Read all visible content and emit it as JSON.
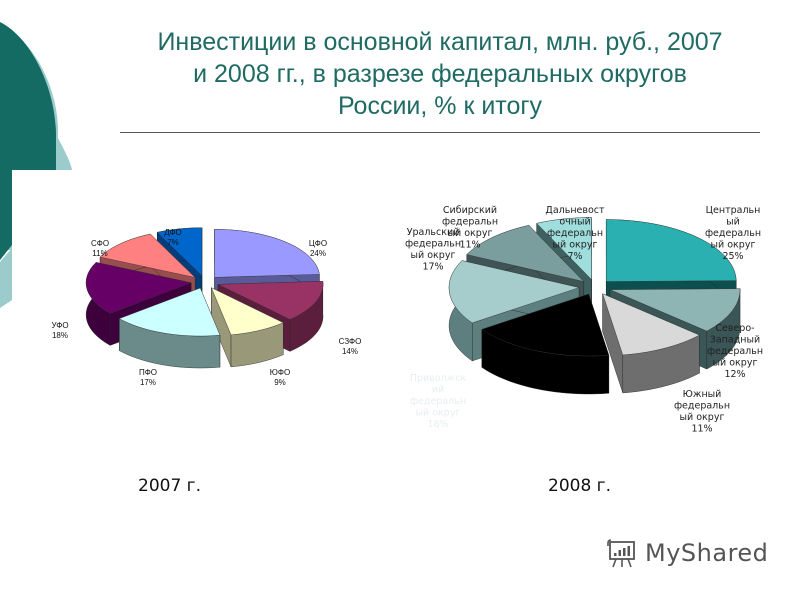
{
  "slide": {
    "title": "Инвестиции в основной капитал, млн. руб., 2007 и 2008 гг., в разрезе федеральных округов России, % к итогу",
    "title_lines": [
      "Инвестиции в основной капитал, млн. руб., 2007",
      "и 2008 гг., в разрезе федеральных округов",
      "России, % к итогу"
    ],
    "year_labels": [
      "2007 г.",
      "2008 г."
    ],
    "title_color": "#1f6b63",
    "watermark": "MyShared"
  },
  "chart_data": [
    {
      "type": "pie",
      "title": "2007 г.",
      "style": "3d-exploded",
      "categories": [
        "ЦФО",
        "СЗФО",
        "ЮФО",
        "ПФО",
        "УФО",
        "СФО",
        "ДФО"
      ],
      "values": [
        24,
        14,
        9,
        17,
        18,
        11,
        7
      ],
      "labels": [
        "ЦФО 24%",
        "СЗФО 14%",
        "ЮФО 9%",
        "ПФО 17%",
        "УФО 18%",
        "СФО 11%",
        "ДФО 7%"
      ],
      "colors": [
        "#9999ff",
        "#993366",
        "#ffffcc",
        "#ccffff",
        "#660066",
        "#ff8080",
        "#0066cc"
      ],
      "side_colors": [
        "#5a5a99",
        "#5c1e3d",
        "#99997a",
        "#6b8a8a",
        "#3d003d",
        "#994d4d",
        "#003d7a"
      ],
      "unit": "%"
    },
    {
      "type": "pie",
      "title": "2008 г.",
      "style": "3d-exploded",
      "categories": [
        "Центральный федеральный округ",
        "Северо-Западный федеральный округ",
        "Южный федеральный округ",
        "Приволжский федеральный округ",
        "Уральский федеральный округ",
        "Сибирский федеральный округ",
        "Дальневосточный федеральный округ"
      ],
      "values": [
        25,
        12,
        11,
        18,
        17,
        11,
        7
      ],
      "labels": [
        [
          "Центральн",
          "ый",
          "федеральн",
          "ый округ",
          "25%"
        ],
        [
          "Северо-",
          "Западный",
          "федеральн",
          "ый округ",
          "12%"
        ],
        [
          "Южный",
          "федеральн",
          "ый округ",
          "11%"
        ],
        [
          "Приволжск",
          "ий",
          "федеральн",
          "ый округ",
          "18%"
        ],
        [
          "Уральский",
          "федеральн",
          "ый округ",
          "17%"
        ],
        [
          "Сибирский",
          "федеральн",
          "ый округ",
          "11%"
        ],
        [
          "Дальневост",
          "очный",
          "федеральн",
          "ый округ",
          "7%"
        ]
      ],
      "colors": [
        "#2ab0b0",
        "#8fb4b4",
        "#d9d9d9",
        "#000000",
        "#a6cccc",
        "#7a9e9e",
        "#a0dede"
      ],
      "side_colors": [
        "#0d4f4f",
        "#3b5656",
        "#6e6e6e",
        "#000000",
        "#5e7f7f",
        "#3f5555",
        "#3f6060"
      ],
      "unit": "%"
    }
  ]
}
